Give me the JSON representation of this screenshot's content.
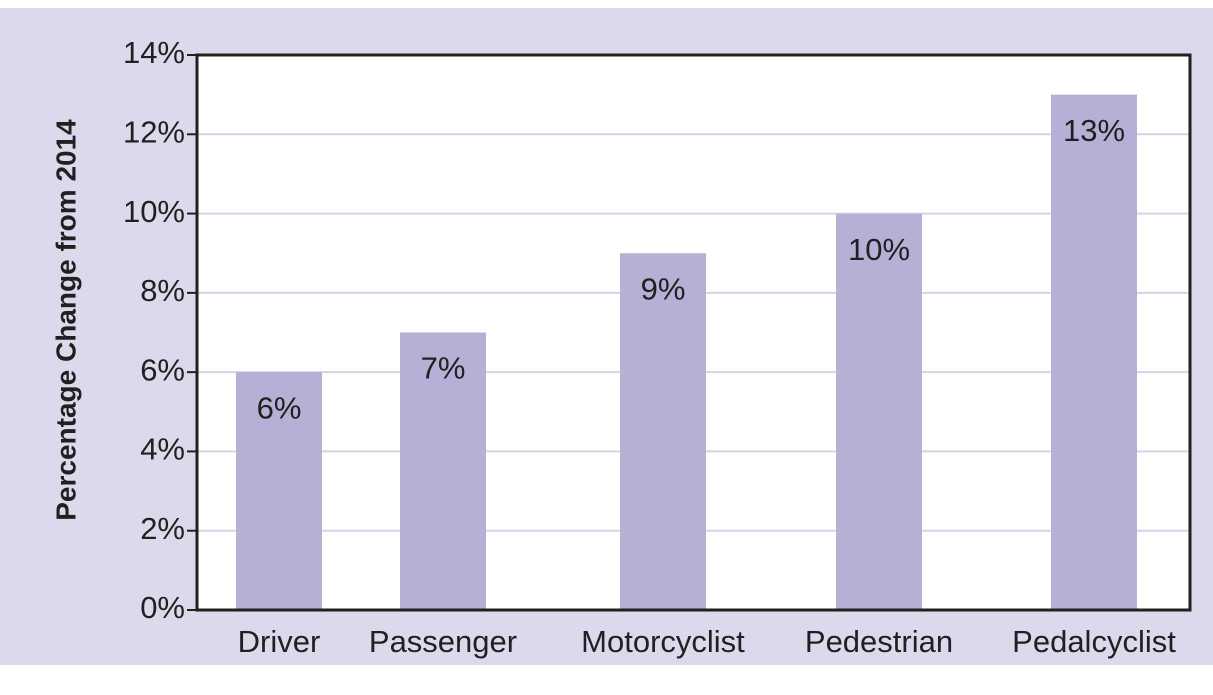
{
  "chart_data": {
    "type": "bar",
    "y_label": "Percentage Change from 2014",
    "categories": [
      "Driver",
      "Passenger",
      "Motorcyclist",
      "Pedestrian",
      "Pedalcyclist"
    ],
    "values": [
      6,
      7,
      9,
      10,
      13
    ],
    "value_labels": [
      "6%",
      "7%",
      "9%",
      "10%",
      "13%"
    ],
    "color": "#b6afd6",
    "ylim": [
      0,
      14
    ],
    "yticks": [
      {
        "value": 0,
        "label": "0%"
      },
      {
        "value": 2,
        "label": "2%"
      },
      {
        "value": 4,
        "label": "4%"
      },
      {
        "value": 6,
        "label": "6%"
      },
      {
        "value": 8,
        "label": "8%"
      },
      {
        "value": 10,
        "label": "10%"
      },
      {
        "value": 12,
        "label": "12%"
      },
      {
        "value": 14,
        "label": "14%"
      }
    ],
    "grid": true
  }
}
